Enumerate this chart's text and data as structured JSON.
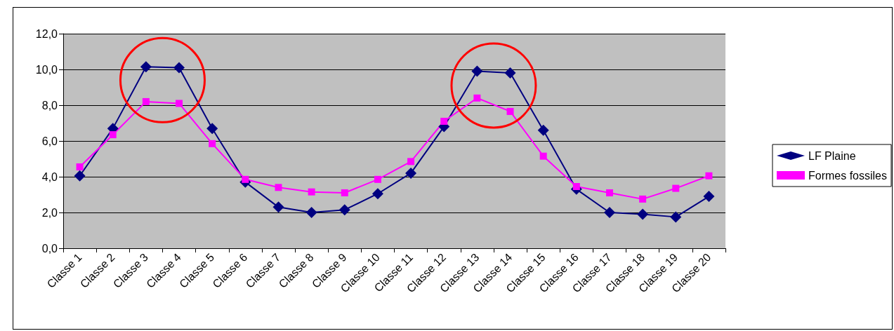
{
  "chart_data": {
    "type": "line",
    "categories": [
      "Classe 1",
      "Classe 2",
      "Classe 3",
      "Classe 4",
      "Classe 5",
      "Classe 6",
      "Classe 7",
      "Classe 8",
      "Classe 9",
      "Classe 10",
      "Classe 11",
      "Classe 12",
      "Classe 13",
      "Classe 14",
      "Classe 15",
      "Classe 16",
      "Classe 17",
      "Classe 18",
      "Classe 19",
      "Classe 20"
    ],
    "series": [
      {
        "name": "LF Plaine",
        "color": "#000080",
        "marker": "diamond",
        "values": [
          4.05,
          6.7,
          10.15,
          10.1,
          6.7,
          3.7,
          2.3,
          2.0,
          2.15,
          3.05,
          4.2,
          6.8,
          9.9,
          9.8,
          6.6,
          3.3,
          2.0,
          1.9,
          1.75,
          2.9
        ]
      },
      {
        "name": "Formes fossiles",
        "color": "#ff00ff",
        "marker": "square",
        "values": [
          4.55,
          6.35,
          8.2,
          8.1,
          5.85,
          3.85,
          3.4,
          3.15,
          3.1,
          3.85,
          4.85,
          7.1,
          8.4,
          7.65,
          5.15,
          3.45,
          3.1,
          2.75,
          3.35,
          4.05
        ]
      }
    ],
    "ylim": [
      0,
      12
    ],
    "yticks": [
      {
        "value": 0,
        "label": "0,0"
      },
      {
        "value": 2,
        "label": "2,0"
      },
      {
        "value": 4,
        "label": "4,0"
      },
      {
        "value": 6,
        "label": "6,0"
      },
      {
        "value": 8,
        "label": "8,0"
      },
      {
        "value": 10,
        "label": "10,0"
      },
      {
        "value": 12,
        "label": "12,0"
      }
    ],
    "grid": "y",
    "legend": "right",
    "line_style": "solid"
  }
}
